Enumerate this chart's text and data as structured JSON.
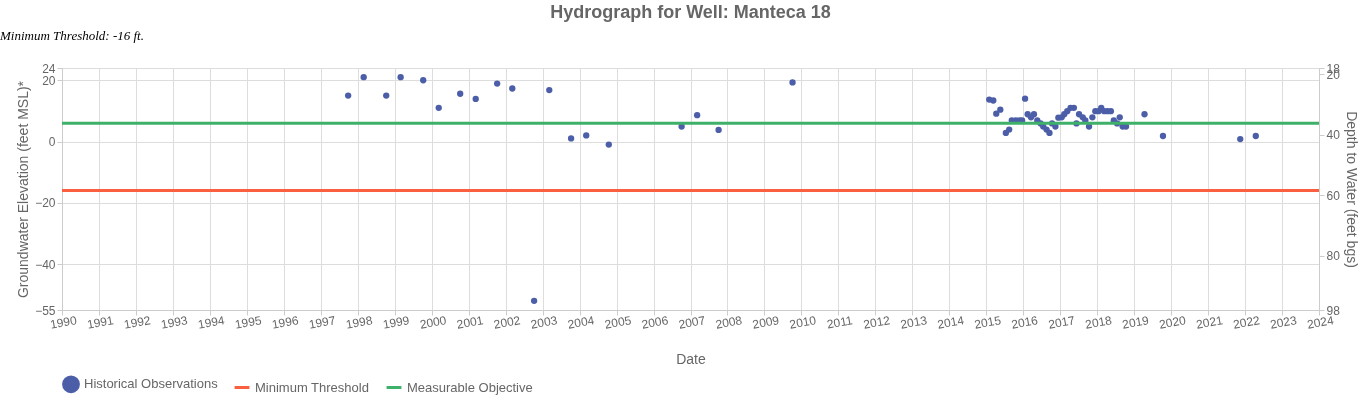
{
  "chart_data": {
    "type": "scatter",
    "title": "Hydrograph for Well: Manteca 18",
    "xlabel": "Date",
    "ylabel": "Groundwater Elevation (feet MSL)*",
    "y2label": "Depth to Water (feet bgs)",
    "annotations": [
      "Minimum Threshold: -16 ft."
    ],
    "x": [
      1997.74,
      1998.16,
      1998.77,
      1999.16,
      1999.77,
      2000.19,
      2000.77,
      2001.19,
      2001.77,
      2002.18,
      2002.77,
      2003.18,
      2003.77,
      2004.18,
      2004.79,
      2006.76,
      2007.18,
      2007.76,
      2009.76,
      2015.08,
      2015.19,
      2015.27,
      2015.38,
      2015.53,
      2015.62,
      2015.69,
      2015.8,
      2015.9,
      2015.97,
      2016.05,
      2016.12,
      2016.21,
      2016.29,
      2016.38,
      2016.47,
      2016.54,
      2016.63,
      2016.71,
      2016.78,
      2016.87,
      2016.95,
      2017.04,
      2017.11,
      2017.19,
      2017.28,
      2017.37,
      2017.44,
      2017.51,
      2017.61,
      2017.68,
      2017.78,
      2017.87,
      2017.95,
      2018.04,
      2018.11,
      2018.19,
      2018.28,
      2018.37,
      2018.45,
      2018.54,
      2018.61,
      2018.69,
      2018.78,
      2019.28,
      2019.78,
      2021.87,
      2022.29
    ],
    "series": [
      {
        "name": "Historical Observations",
        "color": "#4c5ea8",
        "values": [
          15,
          21,
          15,
          21,
          20,
          11,
          15.6,
          13.9,
          18.9,
          17.3,
          -52,
          16.8,
          1,
          2,
          -1,
          4.9,
          8.6,
          3.8,
          19.3,
          13.7,
          13.4,
          9.1,
          10.4,
          2.8,
          3.9,
          6.9,
          6.9,
          6.9,
          6.9,
          14,
          8.9,
          7.9,
          8.9,
          6.9,
          5.9,
          4.9,
          3.9,
          2.8,
          5.9,
          4.9,
          7.8,
          7.9,
          8.9,
          9.9,
          11,
          11,
          5.9,
          8.9,
          7.9,
          6.9,
          4.9,
          7.9,
          9.9,
          9.9,
          11,
          9.9,
          9.9,
          9.9,
          6.9,
          5.9,
          7.9,
          4.9,
          4.9,
          8.9,
          1.8,
          0.8,
          1.8
        ]
      }
    ],
    "ref_lines": [
      {
        "axis": "y",
        "value": -16,
        "label": "Minimum Threshold",
        "color": "#fa6040"
      },
      {
        "axis": "y",
        "value": 6,
        "label": "Measurable Objective",
        "color": "#3eb06a"
      }
    ],
    "xlim": [
      1990,
      2024
    ],
    "xticks": [
      1990,
      1991,
      1992,
      1993,
      1994,
      1995,
      1996,
      1997,
      1998,
      1999,
      2000,
      2001,
      2002,
      2003,
      2004,
      2005,
      2006,
      2007,
      2008,
      2009,
      2010,
      2011,
      2012,
      2013,
      2014,
      2015,
      2016,
      2017,
      2018,
      2019,
      2020,
      2021,
      2022,
      2023,
      2024
    ],
    "ylim": [
      -55,
      24
    ],
    "yticks": [
      -55,
      -40,
      -20,
      0,
      20,
      24
    ],
    "y2lim": [
      98,
      18
    ],
    "y2ticks": [
      18,
      20,
      40,
      60,
      80,
      98
    ],
    "grid": true,
    "legend": "bottom",
    "marker": "circle"
  }
}
